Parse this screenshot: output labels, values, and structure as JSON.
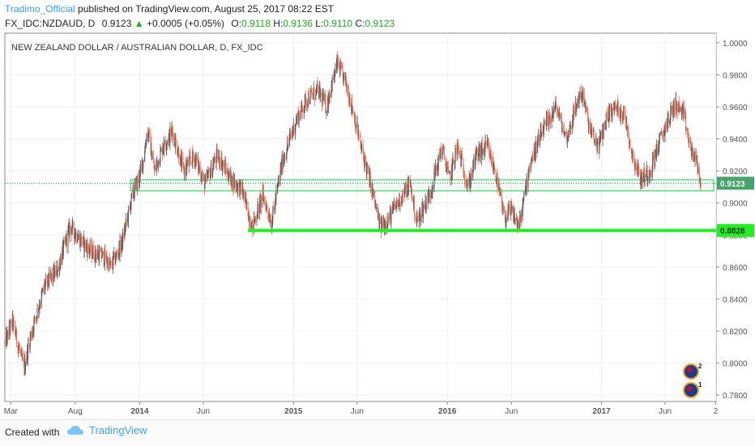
{
  "header": {
    "author": "Tradimo_Official",
    "published": "published on TradingView.com, August 25, 2017 08:22 EST",
    "symbol": "FX_IDC:NZDAUD, D",
    "last": "0.9123",
    "change": "+0.0005 (+0.05%)",
    "open_label": "O:",
    "open": "0.9118",
    "high_label": "H:",
    "high": "0.9136",
    "low_label": "L:",
    "low": "0.9110",
    "close_label": "C:",
    "close": "0.9123"
  },
  "footer": {
    "created_with": "Created with",
    "brand": "TradingView"
  },
  "colors": {
    "up": "#22aa22",
    "brand": "#3aa0e6",
    "candle": "#555555",
    "accent": "#ee6a4d",
    "green_line": "#22ee22",
    "zone": "#22c55e"
  },
  "chart_data": {
    "type": "candlestick",
    "title": "NEW ZEALAND DOLLAR / AUSTRALIAN DOLLAR, D, FX_IDC",
    "ylim": [
      0.776,
      1.006
    ],
    "yticks": [
      "1.0000",
      "0.9800",
      "0.9600",
      "0.9400",
      "0.9200",
      "0.9000",
      "0.8800",
      "0.8600",
      "0.8400",
      "0.8200",
      "0.8000",
      "0.7800"
    ],
    "xticks": [
      "Mar",
      "Aug",
      "2014",
      "Jun",
      "2015",
      "Jun",
      "2016",
      "Jun",
      "2017",
      "Jun",
      "2"
    ],
    "x_domain": [
      "2013-02-15",
      "2017-09-30"
    ],
    "xtick_dates": [
      "2013-03-01",
      "2013-08-01",
      "2014-01-01",
      "2014-06-01",
      "2015-01-01",
      "2015-06-01",
      "2016-01-01",
      "2016-06-01",
      "2017-01-01",
      "2017-06-01",
      "2017-09-29"
    ],
    "price_anchors": [
      [
        "2013-02-15",
        0.812
      ],
      [
        "2013-03-05",
        0.826
      ],
      [
        "2013-04-01",
        0.797
      ],
      [
        "2013-04-20",
        0.82
      ],
      [
        "2013-05-20",
        0.848
      ],
      [
        "2013-06-20",
        0.858
      ],
      [
        "2013-07-20",
        0.885
      ],
      [
        "2013-08-10",
        0.878
      ],
      [
        "2013-09-05",
        0.87
      ],
      [
        "2013-10-10",
        0.866
      ],
      [
        "2013-10-25",
        0.86
      ],
      [
        "2013-11-20",
        0.875
      ],
      [
        "2013-12-15",
        0.905
      ],
      [
        "2014-01-05",
        0.92
      ],
      [
        "2014-01-20",
        0.946
      ],
      [
        "2014-02-05",
        0.92
      ],
      [
        "2014-02-25",
        0.935
      ],
      [
        "2014-03-20",
        0.945
      ],
      [
        "2014-04-15",
        0.92
      ],
      [
        "2014-05-10",
        0.93
      ],
      [
        "2014-06-05",
        0.912
      ],
      [
        "2014-07-05",
        0.93
      ],
      [
        "2014-08-05",
        0.915
      ],
      [
        "2014-09-01",
        0.908
      ],
      [
        "2014-09-25",
        0.885
      ],
      [
        "2014-10-20",
        0.905
      ],
      [
        "2014-11-10",
        0.888
      ],
      [
        "2014-12-05",
        0.925
      ],
      [
        "2015-01-05",
        0.95
      ],
      [
        "2015-02-01",
        0.965
      ],
      [
        "2015-03-01",
        0.97
      ],
      [
        "2015-03-20",
        0.96
      ],
      [
        "2015-04-15",
        0.987
      ],
      [
        "2015-05-05",
        0.975
      ],
      [
        "2015-05-25",
        0.955
      ],
      [
        "2015-06-10",
        0.935
      ],
      [
        "2015-07-05",
        0.91
      ],
      [
        "2015-07-25",
        0.885
      ],
      [
        "2015-08-15",
        0.89
      ],
      [
        "2015-09-05",
        0.9
      ],
      [
        "2015-10-05",
        0.912
      ],
      [
        "2015-10-20",
        0.888
      ],
      [
        "2015-11-20",
        0.905
      ],
      [
        "2015-12-20",
        0.935
      ],
      [
        "2016-01-05",
        0.915
      ],
      [
        "2016-01-25",
        0.935
      ],
      [
        "2016-02-20",
        0.91
      ],
      [
        "2016-03-10",
        0.93
      ],
      [
        "2016-04-05",
        0.935
      ],
      [
        "2016-04-25",
        0.918
      ],
      [
        "2016-05-15",
        0.89
      ],
      [
        "2016-06-01",
        0.895
      ],
      [
        "2016-06-20",
        0.885
      ],
      [
        "2016-07-15",
        0.925
      ],
      [
        "2016-08-15",
        0.945
      ],
      [
        "2016-09-15",
        0.96
      ],
      [
        "2016-10-10",
        0.94
      ],
      [
        "2016-11-01",
        0.96
      ],
      [
        "2016-11-15",
        0.97
      ],
      [
        "2016-12-05",
        0.945
      ],
      [
        "2016-12-25",
        0.935
      ],
      [
        "2017-01-15",
        0.955
      ],
      [
        "2017-02-05",
        0.96
      ],
      [
        "2017-02-25",
        0.955
      ],
      [
        "2017-03-15",
        0.93
      ],
      [
        "2017-04-05",
        0.915
      ],
      [
        "2017-04-25",
        0.92
      ],
      [
        "2017-05-15",
        0.935
      ],
      [
        "2017-06-05",
        0.95
      ],
      [
        "2017-06-25",
        0.962
      ],
      [
        "2017-07-15",
        0.955
      ],
      [
        "2017-07-30",
        0.935
      ],
      [
        "2017-08-15",
        0.925
      ],
      [
        "2017-08-25",
        0.912
      ]
    ],
    "last_price": 0.9123,
    "last_price_label": "0.9123",
    "support_level": 0.8828,
    "support_label": "0.8828",
    "support_start": "2014-09-15",
    "zone": [
      0.9075,
      0.9145
    ],
    "zone_start": "2013-12-10",
    "event_badges": [
      "2",
      "1"
    ]
  }
}
